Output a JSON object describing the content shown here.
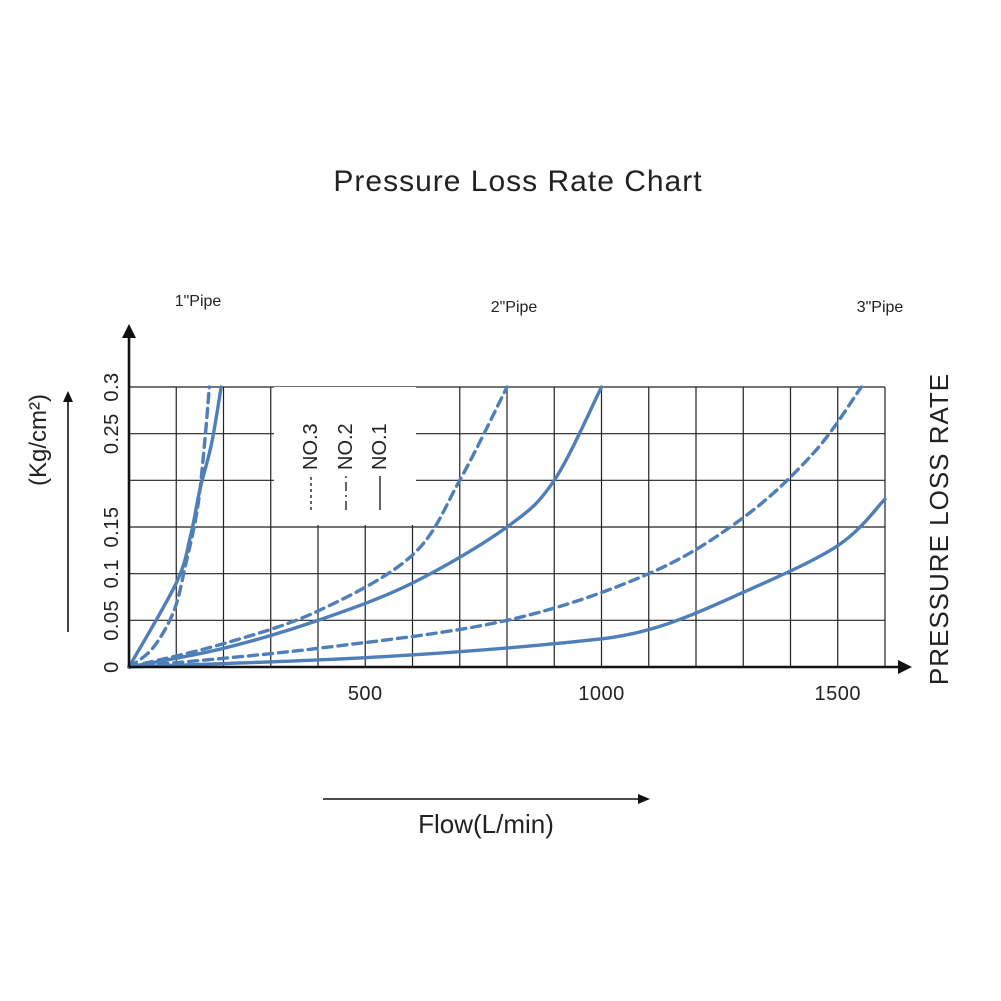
{
  "chart_data": {
    "type": "line",
    "title": "Pressure Loss Rate Chart",
    "xlabel": "Flow(L/min)",
    "ylabel": "(Kg/cm²)",
    "right_label": "PRESSURE LOSS RATE",
    "xlim": [
      0,
      1650
    ],
    "ylim": [
      0,
      0.3
    ],
    "x_ticks": [
      "500",
      "1000",
      "1500"
    ],
    "x_tick_values": [
      500,
      1000,
      1500
    ],
    "y_ticks": [
      "0",
      "0.05",
      "0.1",
      "0.15",
      "0.25",
      "0.3"
    ],
    "y_tick_values": [
      0,
      0.05,
      0.1,
      0.15,
      0.25,
      0.3
    ],
    "grid": true,
    "pipe_labels": [
      "1\"Pipe",
      "2\"Pipe",
      "3\"Pipe"
    ],
    "legend": [
      "NO.3",
      "NO.2",
      "NO.1"
    ],
    "legend_placement": "inside-top-left",
    "series": [
      {
        "name": "NO.1",
        "group": "1\"Pipe",
        "style": "solid",
        "x": [
          0,
          100,
          130,
          150,
          175,
          195
        ],
        "y": [
          0,
          0.09,
          0.14,
          0.19,
          0.24,
          0.3
        ]
      },
      {
        "name": "NO.2",
        "group": "1\"Pipe",
        "style": "dashed",
        "x": [
          0,
          50,
          95,
          120,
          145,
          160,
          170
        ],
        "y": [
          0,
          0.02,
          0.06,
          0.11,
          0.17,
          0.24,
          0.3
        ]
      },
      {
        "name": "NO.1",
        "group": "2\"Pipe",
        "style": "solid",
        "x": [
          0,
          200,
          400,
          600,
          800,
          900,
          1000
        ],
        "y": [
          0,
          0.02,
          0.05,
          0.09,
          0.15,
          0.2,
          0.3
        ]
      },
      {
        "name": "NO.2",
        "group": "2\"Pipe",
        "style": "dashed",
        "x": [
          0,
          200,
          400,
          600,
          700,
          800
        ],
        "y": [
          0,
          0.025,
          0.06,
          0.12,
          0.2,
          0.3
        ]
      },
      {
        "name": "NO.1",
        "group": "3\"Pipe",
        "style": "solid",
        "x": [
          0,
          500,
          900,
          1100,
          1300,
          1500,
          1600
        ],
        "y": [
          0,
          0.01,
          0.025,
          0.04,
          0.08,
          0.13,
          0.18
        ]
      },
      {
        "name": "NO.2",
        "group": "3\"Pipe",
        "style": "dashed",
        "x": [
          0,
          400,
          800,
          1100,
          1300,
          1450,
          1550
        ],
        "y": [
          0,
          0.02,
          0.05,
          0.1,
          0.16,
          0.23,
          0.3
        ]
      }
    ],
    "colors": {
      "curve": "#4f7fb8",
      "axis": "#111111",
      "grid": "#222222"
    }
  }
}
